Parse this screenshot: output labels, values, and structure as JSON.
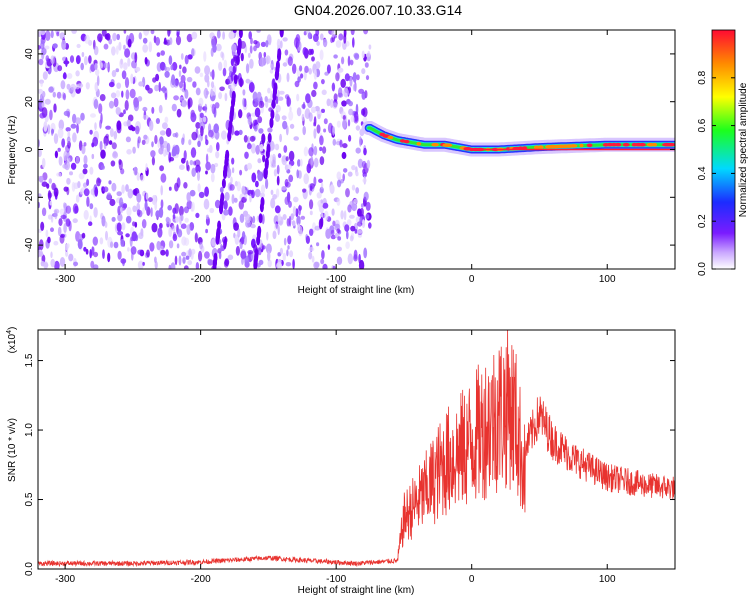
{
  "title": "GN04.2026.007.10.33.G14",
  "chart_data": [
    {
      "type": "heatmap",
      "xlabel": "Height of straight line (km)",
      "ylabel": "Frequency (Hz)",
      "xlim": [
        -320,
        150
      ],
      "ylim": [
        -50,
        50
      ],
      "xticks": [
        -300,
        -200,
        -100,
        0,
        100
      ],
      "yticks": [
        -40,
        -20,
        0,
        20,
        40
      ],
      "noise_region_x": [
        -320,
        -75
      ],
      "signal_track": [
        {
          "x": -75,
          "y": 9
        },
        {
          "x": -65,
          "y": 6
        },
        {
          "x": -55,
          "y": 4
        },
        {
          "x": -45,
          "y": 3
        },
        {
          "x": -35,
          "y": 2
        },
        {
          "x": -20,
          "y": 2
        },
        {
          "x": -10,
          "y": 1
        },
        {
          "x": 0,
          "y": 0
        },
        {
          "x": 20,
          "y": 0
        },
        {
          "x": 50,
          "y": 1
        },
        {
          "x": 100,
          "y": 2
        },
        {
          "x": 150,
          "y": 2
        }
      ],
      "colorbar": {
        "label": "Normalized spectral amplitude",
        "ticks": [
          "0.0",
          "0.2",
          "0.4",
          "0.6",
          "0.8"
        ],
        "range": [
          0,
          1
        ]
      }
    },
    {
      "type": "line",
      "xlabel": "Height of straight line (km)",
      "ylabel": "SNR (10 * v/v)",
      "yscale_label": "(x10",
      "yscale_exp": "4",
      "xlim": [
        -320,
        150
      ],
      "ylim": [
        0,
        1.72
      ],
      "xticks": [
        -300,
        -200,
        -100,
        0,
        100
      ],
      "yticks": [
        "0.0",
        "0.5",
        "1.0",
        "1.5"
      ],
      "color": "#e8332f",
      "envelope": [
        {
          "x": -320,
          "y": 0.04
        },
        {
          "x": -250,
          "y": 0.04
        },
        {
          "x": -200,
          "y": 0.05
        },
        {
          "x": -150,
          "y": 0.08
        },
        {
          "x": -120,
          "y": 0.06
        },
        {
          "x": -85,
          "y": 0.04
        },
        {
          "x": -55,
          "y": 0.06
        },
        {
          "x": -50,
          "y": 0.5
        },
        {
          "x": -35,
          "y": 0.75
        },
        {
          "x": -20,
          "y": 1.05
        },
        {
          "x": -5,
          "y": 1.2
        },
        {
          "x": 10,
          "y": 1.42
        },
        {
          "x": 20,
          "y": 1.55
        },
        {
          "x": 28,
          "y": 1.63
        },
        {
          "x": 32,
          "y": 1.5
        },
        {
          "x": 40,
          "y": 0.9
        },
        {
          "x": 50,
          "y": 1.15
        },
        {
          "x": 60,
          "y": 0.95
        },
        {
          "x": 75,
          "y": 0.82
        },
        {
          "x": 100,
          "y": 0.68
        },
        {
          "x": 130,
          "y": 0.62
        },
        {
          "x": 150,
          "y": 0.6
        }
      ]
    }
  ]
}
